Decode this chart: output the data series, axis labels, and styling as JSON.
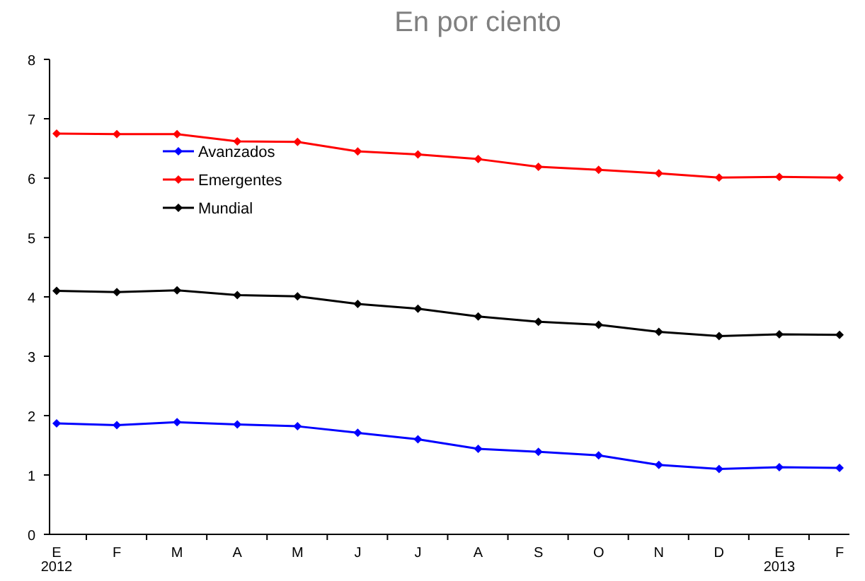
{
  "chart_data": {
    "type": "line",
    "title": "En por ciento",
    "categories": [
      "E\n2012",
      "F",
      "M",
      "A",
      "M",
      "J",
      "J",
      "A",
      "S",
      "O",
      "N",
      "D",
      "E\n2013",
      "F"
    ],
    "series": [
      {
        "name": "Avanzados",
        "color": "#0000ff",
        "values": [
          1.87,
          1.84,
          1.89,
          1.85,
          1.82,
          1.71,
          1.6,
          1.44,
          1.39,
          1.33,
          1.17,
          1.1,
          1.13,
          1.12
        ]
      },
      {
        "name": "Emergentes",
        "color": "#ff0000",
        "values": [
          6.75,
          6.74,
          6.74,
          6.62,
          6.61,
          6.45,
          6.4,
          6.32,
          6.19,
          6.14,
          6.08,
          6.01,
          6.02,
          6.01
        ]
      },
      {
        "name": "Mundial",
        "color": "#000000",
        "values": [
          4.1,
          4.08,
          4.11,
          4.03,
          4.01,
          3.88,
          3.8,
          3.67,
          3.58,
          3.53,
          3.41,
          3.34,
          3.37,
          3.36
        ]
      }
    ],
    "ylim": [
      0,
      8
    ],
    "yticks": [
      0,
      1,
      2,
      3,
      4,
      5,
      6,
      7,
      8
    ],
    "grid": false,
    "legend": "top left",
    "marker": "diamond",
    "line_style": "solid"
  }
}
